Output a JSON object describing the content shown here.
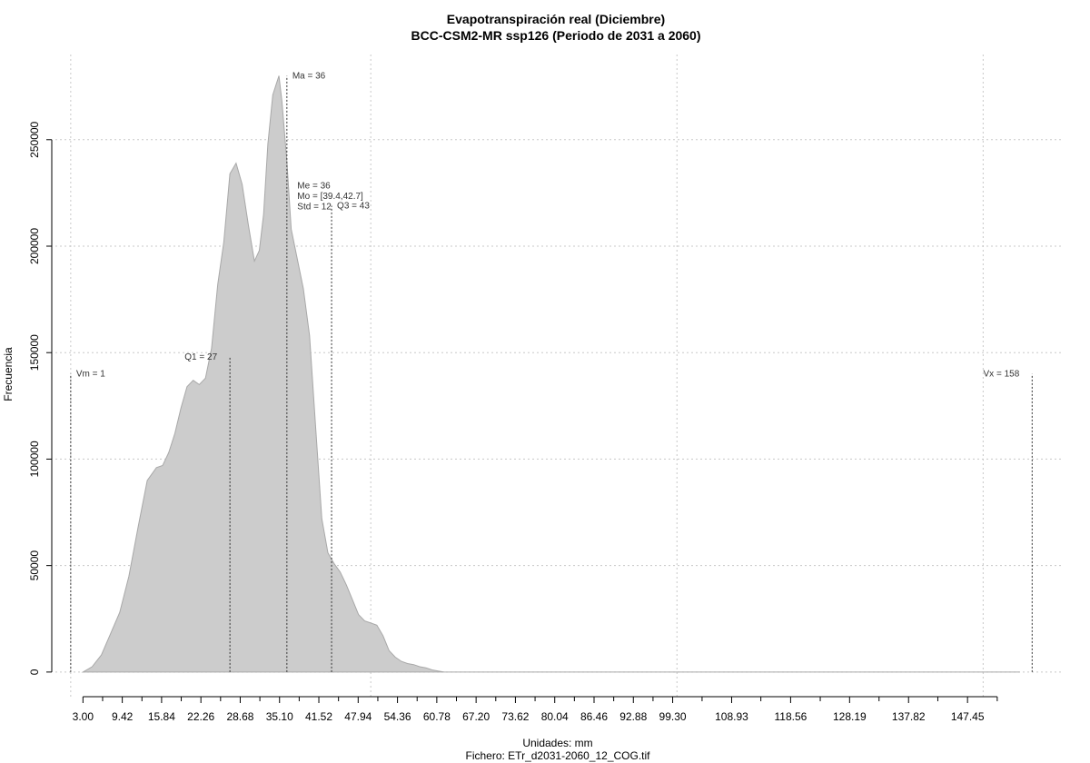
{
  "chart_data": {
    "type": "area",
    "title": "Evapotranspiración real (Diciembre)",
    "subtitle": "BCC-CSM2-MR ssp126 (Periodo de 2031 a 2060)",
    "xlabel": "Unidades: mm",
    "xlabel2": "Fichero: ETr_d2031-2060_12_COG.tif",
    "ylabel": "Frecuencia",
    "xlim": [
      -1.5,
      163
    ],
    "ylim": [
      -12000,
      290000
    ],
    "grid": true,
    "fill_color": "#cccccc",
    "line_color": "#a8a8a8",
    "y_ticks": [
      0,
      50000,
      100000,
      150000,
      200000,
      250000
    ],
    "y_tick_labels": [
      "0",
      "50000",
      "100000",
      "150000",
      "200000",
      "250000"
    ],
    "x_ticks": [
      3.0,
      9.42,
      15.84,
      22.26,
      28.68,
      35.1,
      41.52,
      47.94,
      54.36,
      60.78,
      67.2,
      73.62,
      80.04,
      86.46,
      92.88,
      99.3,
      108.93,
      118.56,
      128.19,
      137.82,
      147.45
    ],
    "x_tick_labels": [
      "3.00",
      "9.42",
      "15.84",
      "22.26",
      "28.68",
      "35.10",
      "41.52",
      "47.94",
      "54.36",
      "60.78",
      "67.20",
      "73.62",
      "80.04",
      "86.46",
      "92.88",
      "99.30",
      "108.93",
      "118.56",
      "128.19",
      "137.82",
      "147.45"
    ],
    "x_minor_ticks": [
      6.21,
      12.63,
      19.05,
      25.47,
      31.89,
      38.31,
      44.73,
      51.15,
      57.57,
      63.99,
      70.41,
      76.83,
      83.25,
      89.67,
      96.09,
      104.1,
      113.7,
      123.4,
      133.0,
      142.6,
      152.3
    ],
    "x_grid": [
      1,
      50,
      100,
      150
    ],
    "y_grid": [
      0,
      50000,
      100000,
      150000,
      200000,
      250000
    ],
    "series": [
      {
        "x": [
          3.0,
          4.5,
          6.0,
          7.5,
          9.0,
          10.5,
          12.0,
          13.5,
          15.0,
          16.0,
          17.0,
          18.0,
          19.0,
          20.0,
          21.0,
          22.0,
          23.0,
          24.0,
          25.0,
          26.0,
          27.0,
          28.0,
          29.0,
          30.0,
          31.0,
          31.8,
          32.5,
          33.2,
          34.0,
          35.0,
          35.5,
          36.3,
          37.0,
          38.0,
          39.0,
          40.0,
          41.0,
          42.0,
          43.0,
          44.0,
          45.0,
          46.0,
          47.0,
          48.0,
          49.0,
          50.0,
          51.0,
          52.0,
          53.0,
          54.0,
          55.0,
          56.0,
          57.0,
          58.0,
          59.0,
          60.0,
          61.0,
          62.0,
          63.0,
          64.0,
          65.0,
          66.0,
          68.0,
          70.0,
          73.0,
          76.0,
          80.0,
          85.0,
          90.0,
          95.0,
          100.0,
          110.0,
          120.0,
          130.0,
          140.0,
          150.0,
          156.0
        ],
        "y": [
          0,
          2500,
          8000,
          18000,
          28000,
          45000,
          68000,
          90000,
          96000,
          97000,
          103000,
          112000,
          124000,
          134000,
          137000,
          135000,
          138000,
          152000,
          182000,
          202000,
          234000,
          239000,
          229000,
          210000,
          193000,
          198000,
          215000,
          248000,
          271000,
          280000,
          268000,
          240000,
          208000,
          194000,
          180000,
          158000,
          115000,
          72000,
          56000,
          51000,
          47000,
          41000,
          34000,
          27000,
          24000,
          23000,
          22000,
          17000,
          10000,
          7000,
          5000,
          4000,
          3500,
          2500,
          2000,
          1000,
          500,
          0,
          0,
          0,
          0,
          0,
          0,
          0,
          0,
          0,
          0,
          0,
          0,
          0,
          0,
          0,
          0,
          0,
          0,
          0,
          0
        ],
        "y_note": "density values"
      }
    ],
    "markers": [
      {
        "label": "Vm = 1",
        "x": 1,
        "y_top": 140000,
        "label_side": "right"
      },
      {
        "label": "Q1 = 27",
        "x": 27,
        "y_top": 148000,
        "label_side": "left"
      },
      {
        "label": "Ma = 36",
        "x": 36.3,
        "y_top": 280000,
        "label_side": "right"
      },
      {
        "label": "Q3 = 43",
        "x": 43.6,
        "y_top": 219000,
        "label_side": "right"
      },
      {
        "label": "Vx = 158",
        "x": 158,
        "y_top": 140000,
        "label_side": "left"
      }
    ],
    "stats": [
      "Me = 36",
      "Mo = [39.4,42.7]",
      "Std = 12"
    ]
  }
}
